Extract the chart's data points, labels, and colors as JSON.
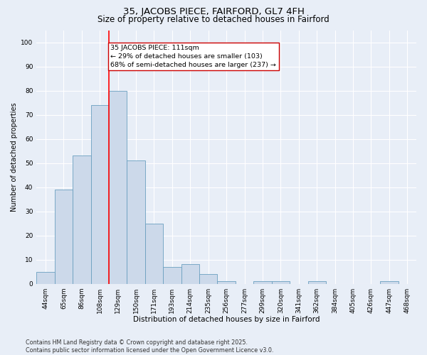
{
  "title": "35, JACOBS PIECE, FAIRFORD, GL7 4FH",
  "subtitle": "Size of property relative to detached houses in Fairford",
  "xlabel": "Distribution of detached houses by size in Fairford",
  "ylabel": "Number of detached properties",
  "bins": [
    "44sqm",
    "65sqm",
    "86sqm",
    "108sqm",
    "129sqm",
    "150sqm",
    "171sqm",
    "193sqm",
    "214sqm",
    "235sqm",
    "256sqm",
    "277sqm",
    "299sqm",
    "320sqm",
    "341sqm",
    "362sqm",
    "384sqm",
    "405sqm",
    "426sqm",
    "447sqm",
    "468sqm"
  ],
  "values": [
    5,
    39,
    53,
    74,
    80,
    51,
    25,
    7,
    8,
    4,
    1,
    0,
    1,
    1,
    0,
    1,
    0,
    0,
    0,
    1,
    0
  ],
  "bar_color": "#ccd9ea",
  "bar_edge_color": "#6a9fc0",
  "red_line_x": 3.5,
  "annotation_text": "35 JACOBS PIECE: 111sqm\n← 29% of detached houses are smaller (103)\n68% of semi-detached houses are larger (237) →",
  "annotation_box_color": "#ffffff",
  "annotation_box_edge": "#cc0000",
  "ylim": [
    0,
    105
  ],
  "yticks": [
    0,
    10,
    20,
    30,
    40,
    50,
    60,
    70,
    80,
    90,
    100
  ],
  "background_color": "#e8eef7",
  "grid_color": "#ffffff",
  "footer": "Contains HM Land Registry data © Crown copyright and database right 2025.\nContains public sector information licensed under the Open Government Licence v3.0.",
  "title_fontsize": 9.5,
  "subtitle_fontsize": 8.5,
  "xlabel_fontsize": 7.5,
  "ylabel_fontsize": 7.0,
  "tick_fontsize": 6.5,
  "annotation_fontsize": 6.8,
  "footer_fontsize": 5.8
}
